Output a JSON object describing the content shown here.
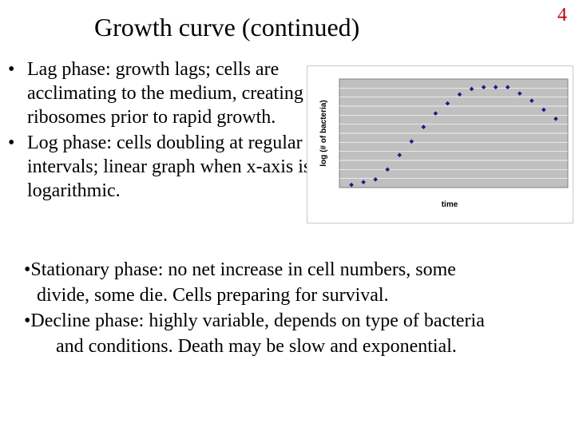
{
  "slide": {
    "title": "Growth curve (continued)",
    "page_number": "4",
    "page_number_color": "#c00000"
  },
  "bullets_upper": [
    {
      "text": "Lag phase: growth lags; cells are acclimating to the medium, creating ribosomes prior to rapid growth."
    },
    {
      "text": "Log phase: cells doubling at regular intervals; linear graph when x-axis is logarithmic."
    }
  ],
  "bullet_symbol": "•",
  "bullets_lower": {
    "stationary_line1": "•Stationary phase: no net increase in cell numbers, some",
    "stationary_line2": "divide, some die.  Cells preparing for survival.",
    "decline_line1": "•Decline phase: highly variable, depends on type of bacteria",
    "decline_line2": "and conditions. Death may be slow and exponential."
  },
  "chart_data": {
    "type": "scatter",
    "title": "",
    "xlabel": "time",
    "ylabel": "log (# of bacteria)",
    "grid": true,
    "legend": "none",
    "plot_background": "#c0c0c0",
    "marker_color": "#1a1a8c",
    "x": [
      1,
      2,
      3,
      4,
      5,
      6,
      7,
      8,
      9,
      10,
      11,
      12,
      13,
      14,
      15,
      16,
      17,
      18
    ],
    "y": [
      0.3,
      0.6,
      0.9,
      2.0,
      3.6,
      5.1,
      6.7,
      8.2,
      9.3,
      10.3,
      10.9,
      11.1,
      11.1,
      11.1,
      10.4,
      9.6,
      8.6,
      7.6
    ],
    "xlim": [
      0,
      19
    ],
    "ylim": [
      0,
      12
    ]
  }
}
